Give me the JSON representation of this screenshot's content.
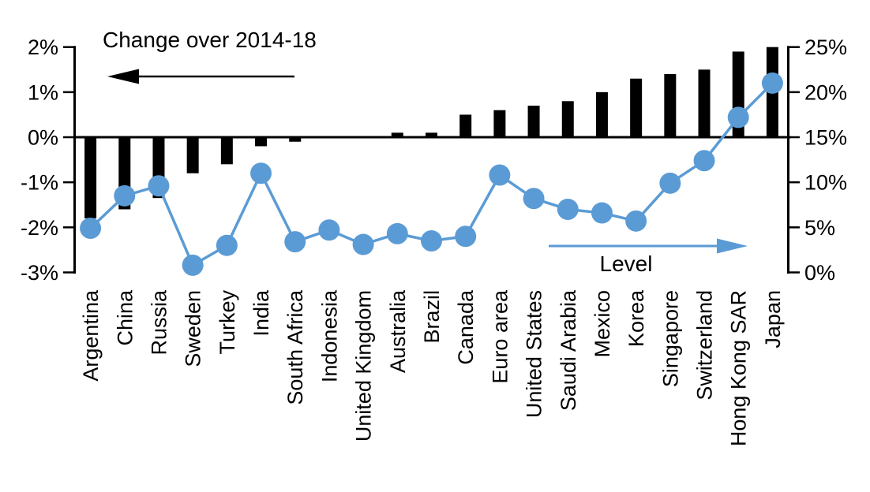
{
  "chart_data": {
    "type": "bar",
    "subtype": "combo-bar-line-dual-axis",
    "categories": [
      "Argentina",
      "China",
      "Russia",
      "Sweden",
      "Turkey",
      "India",
      "South Africa",
      "Indonesia",
      "United Kingdom",
      "Australia",
      "Brazil",
      "Canada",
      "Euro area",
      "United States",
      "Saudi Arabia",
      "Mexico",
      "Korea",
      "Singapore",
      "Switzerland",
      "Hong Kong SAR",
      "Japan"
    ],
    "series": [
      {
        "name": "Change over 2014-18",
        "type": "bar",
        "axis": "left",
        "color": "#000000",
        "values": [
          -1.8,
          -1.6,
          -1.35,
          -0.8,
          -0.6,
          -0.2,
          -0.1,
          0,
          0,
          0.1,
          0.1,
          0.5,
          0.6,
          0.7,
          0.8,
          1.0,
          1.3,
          1.4,
          1.5,
          1.9,
          2.0
        ]
      },
      {
        "name": "Level",
        "type": "line",
        "axis": "right",
        "color": "#5B9BD5",
        "values": [
          4.9,
          8.5,
          9.6,
          0.8,
          3.0,
          11.0,
          3.4,
          4.7,
          3.1,
          4.3,
          3.5,
          4.0,
          10.8,
          8.2,
          7.0,
          6.6,
          5.7,
          9.9,
          12.4,
          17.2,
          21.0
        ]
      }
    ],
    "left_axis": {
      "min": -3,
      "max": 2,
      "tick_values": [
        2,
        1,
        0,
        -1,
        -2,
        -3
      ],
      "tick_labels": [
        "2%",
        "1%",
        "0%",
        "-1%",
        "-2%",
        "-3%"
      ]
    },
    "right_axis": {
      "min": 0,
      "max": 25,
      "tick_values": [
        25,
        20,
        15,
        10,
        5,
        0
      ],
      "tick_labels": [
        "25%",
        "20%",
        "15%",
        "10%",
        "5%",
        "0%"
      ]
    },
    "grid": false,
    "legend_position": "none",
    "annotations": {
      "change": {
        "label": "Change over 2014-18",
        "arrow_direction": "left",
        "color": "#000000"
      },
      "level": {
        "label": "Level",
        "arrow_direction": "right",
        "color": "#5B9BD5"
      }
    }
  }
}
